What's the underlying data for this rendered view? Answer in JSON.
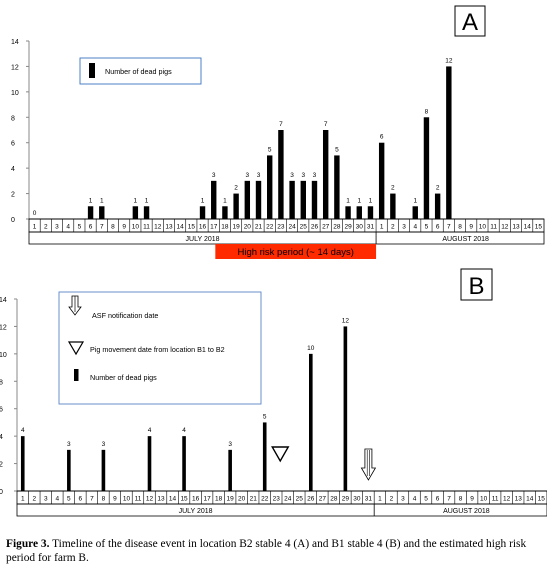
{
  "chart_data": [
    {
      "panel_label": "A",
      "type": "bar",
      "ylim": [
        0,
        14
      ],
      "y_ticks": [
        0,
        2,
        4,
        6,
        8,
        10,
        12,
        14
      ],
      "x_month_labels": [
        "JULY 2018",
        "AUGUST 2018"
      ],
      "x_days": [
        1,
        2,
        3,
        4,
        5,
        6,
        7,
        8,
        9,
        10,
        11,
        12,
        13,
        14,
        15,
        16,
        17,
        18,
        19,
        20,
        21,
        22,
        23,
        24,
        25,
        26,
        27,
        28,
        29,
        30,
        31,
        1,
        2,
        3,
        4,
        5,
        6,
        7,
        8,
        9,
        10,
        11,
        12,
        13,
        14,
        15
      ],
      "legend": [
        {
          "label": "Number of dead pigs",
          "marker": "bar"
        }
      ],
      "bars": [
        {
          "month": "JULY",
          "day": 1,
          "value": 0
        },
        {
          "month": "JULY",
          "day": 6,
          "value": 1
        },
        {
          "month": "JULY",
          "day": 7,
          "value": 1
        },
        {
          "month": "JULY",
          "day": 10,
          "value": 1
        },
        {
          "month": "JULY",
          "day": 11,
          "value": 1
        },
        {
          "month": "JULY",
          "day": 16,
          "value": 1
        },
        {
          "month": "JULY",
          "day": 17,
          "value": 3
        },
        {
          "month": "JULY",
          "day": 18,
          "value": 1
        },
        {
          "month": "JULY",
          "day": 19,
          "value": 2
        },
        {
          "month": "JULY",
          "day": 20,
          "value": 3
        },
        {
          "month": "JULY",
          "day": 21,
          "value": 3
        },
        {
          "month": "JULY",
          "day": 22,
          "value": 5
        },
        {
          "month": "JULY",
          "day": 23,
          "value": 7
        },
        {
          "month": "JULY",
          "day": 24,
          "value": 3
        },
        {
          "month": "JULY",
          "day": 25,
          "value": 3
        },
        {
          "month": "JULY",
          "day": 26,
          "value": 3
        },
        {
          "month": "JULY",
          "day": 27,
          "value": 7
        },
        {
          "month": "JULY",
          "day": 28,
          "value": 5
        },
        {
          "month": "JULY",
          "day": 29,
          "value": 1
        },
        {
          "month": "JULY",
          "day": 30,
          "value": 1
        },
        {
          "month": "JULY",
          "day": 31,
          "value": 1
        },
        {
          "month": "AUGUST",
          "day": 1,
          "value": 6
        },
        {
          "month": "AUGUST",
          "day": 2,
          "value": 2
        },
        {
          "month": "AUGUST",
          "day": 4,
          "value": 1
        },
        {
          "month": "AUGUST",
          "day": 5,
          "value": 8
        },
        {
          "month": "AUGUST",
          "day": 6,
          "value": 2
        },
        {
          "month": "AUGUST",
          "day": 7,
          "value": 12
        }
      ],
      "high_risk_period": {
        "label": "High risk period (~ 14 days)",
        "start": "JULY 18",
        "end": "JULY 31",
        "color": "#ff2a00"
      }
    },
    {
      "panel_label": "B",
      "type": "bar",
      "ylim": [
        0,
        14
      ],
      "y_ticks": [
        0,
        2,
        4,
        6,
        8,
        10,
        12,
        14
      ],
      "x_month_labels": [
        "JULY 2018",
        "AUGUST 2018"
      ],
      "x_days": [
        1,
        2,
        3,
        4,
        5,
        6,
        7,
        8,
        9,
        10,
        11,
        12,
        13,
        14,
        15,
        16,
        17,
        18,
        19,
        20,
        21,
        22,
        23,
        24,
        25,
        26,
        27,
        28,
        29,
        30,
        31,
        1,
        2,
        3,
        4,
        5,
        6,
        7,
        8,
        9,
        10,
        11,
        12,
        13,
        14,
        15
      ],
      "legend": [
        {
          "label": "ASF notification date",
          "marker": "hatched-arrow"
        },
        {
          "label": "Pig movement date from location B1 to B2",
          "marker": "triangle"
        },
        {
          "label": "Number of dead pigs",
          "marker": "bar"
        }
      ],
      "bars": [
        {
          "month": "JULY",
          "day": 1,
          "value": 4
        },
        {
          "month": "JULY",
          "day": 5,
          "value": 3
        },
        {
          "month": "JULY",
          "day": 8,
          "value": 3
        },
        {
          "month": "JULY",
          "day": 12,
          "value": 4
        },
        {
          "month": "JULY",
          "day": 15,
          "value": 4
        },
        {
          "month": "JULY",
          "day": 19,
          "value": 3
        },
        {
          "month": "JULY",
          "day": 22,
          "value": 5
        },
        {
          "month": "JULY",
          "day": 26,
          "value": 10
        },
        {
          "month": "JULY",
          "day": 29,
          "value": 12
        }
      ],
      "pig_movement_date": {
        "month": "JULY",
        "day": 23
      },
      "asf_notification_date": {
        "month": "JULY",
        "day": 31
      }
    }
  ],
  "caption": {
    "label": "Figure 3.",
    "text": " Timeline of the disease event in location B2 stable 4 (A) and B1 stable 4 (B) and the estimated high risk period for farm B."
  }
}
